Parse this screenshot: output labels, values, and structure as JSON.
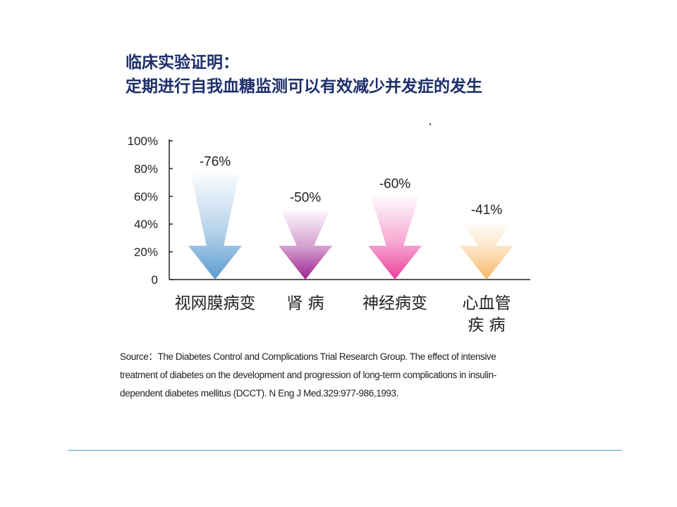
{
  "heading": {
    "line1": "临床实验证明：",
    "line2": "定期进行自我血糖监测可以有效减少并发症的发生"
  },
  "chart_data": {
    "type": "bar",
    "y_ticks": [
      "100%",
      "80%",
      "60%",
      "40%",
      "20%",
      "0"
    ],
    "ylim": [
      0,
      100
    ],
    "categories": [
      [
        "视网膜病变"
      ],
      [
        "肾  病"
      ],
      [
        "神经病变"
      ],
      [
        "心血管",
        "疾  病"
      ]
    ],
    "values": [
      76,
      50,
      60,
      41
    ],
    "value_labels": [
      "-76%",
      "-50%",
      "-60%",
      "-41%"
    ],
    "colors": [
      "#5b9bd0",
      "#9c1f8f",
      "#ec3f9b",
      "#f8b561"
    ]
  },
  "source_text": "Source：The Diabetes Control and Complications Trial Research Group. The effect of intensive treatment of diabetes on the development and progression of long-term complications in insulin-dependent diabetes mellitus (DCCT). N Eng J Med.329:977-986,1993."
}
